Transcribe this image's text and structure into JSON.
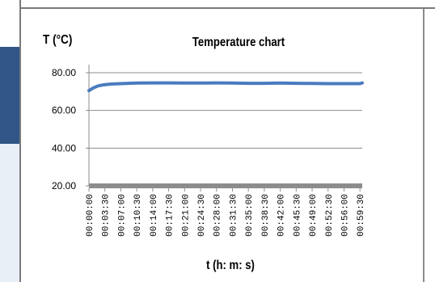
{
  "chart_data": {
    "type": "line",
    "title": "Temperature chart",
    "ylabel": "T (°C)",
    "xlabel": "t (h: m: s)",
    "ylim": [
      20,
      80
    ],
    "yticks": [
      "80.00",
      "60.00",
      "40.00",
      "20.00"
    ],
    "yticks_values": [
      80,
      60,
      40,
      20
    ],
    "xticks": [
      "00:00:00",
      "00:03:30",
      "00:07:00",
      "00:10:30",
      "00:14:00",
      "00:17:30",
      "00:21:00",
      "00:24:30",
      "00:28:00",
      "00:31:30",
      "00:35:00",
      "00:38:30",
      "00:42:00",
      "00:45:30",
      "00:49:00",
      "00:52:30",
      "00:56:00",
      "00:59:30"
    ],
    "grid": true,
    "series": [
      {
        "color": "#4a7bbf",
        "x": [
          "00:00:00",
          "00:01:00",
          "00:02:00",
          "00:03:00",
          "00:04:00",
          "00:05:00",
          "00:06:00",
          "00:07:00",
          "00:10:30",
          "00:14:00",
          "00:17:30",
          "00:21:00",
          "00:24:30",
          "00:28:00",
          "00:31:30",
          "00:35:00",
          "00:38:30",
          "00:42:00",
          "00:45:30",
          "00:49:00",
          "00:52:30",
          "00:56:00",
          "00:59:30",
          "01:00:00"
        ],
        "values": [
          70.5,
          72.0,
          73.0,
          73.5,
          73.8,
          74.0,
          74.1,
          74.2,
          74.5,
          74.6,
          74.6,
          74.5,
          74.5,
          74.6,
          74.5,
          74.4,
          74.4,
          74.5,
          74.4,
          74.3,
          74.2,
          74.2,
          74.2,
          74.6
        ]
      }
    ]
  },
  "colors": {
    "line": "#4a7bbf",
    "x_axis_bar": "#8c8c8c",
    "grid": "#8c8c8c",
    "sidebar_blue": "#2f5686",
    "sidebar_light": "#e9eff6"
  }
}
